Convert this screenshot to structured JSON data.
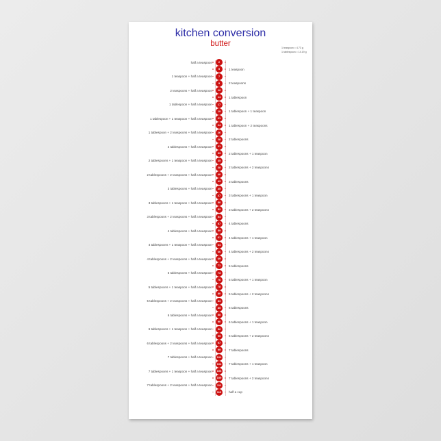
{
  "header": {
    "title": "kitchen conversion",
    "subtitle": "butter"
  },
  "notes": [
    "1 teaspoon = 4.73 g",
    "1 tablespoon = 14.19 g"
  ],
  "colors": {
    "title": "#2b2ba6",
    "subtitle": "#d01818",
    "badge": "#cc1111"
  },
  "rows": [
    {
      "grams": "2",
      "label": "half a teaspoon",
      "side": "left"
    },
    {
      "grams": "5",
      "label": "1 teaspoon",
      "side": "right"
    },
    {
      "grams": "7",
      "label": "1 teaspoon + half a teaspoon",
      "side": "left"
    },
    {
      "grams": "9",
      "label": "2 teaspoons",
      "side": "right"
    },
    {
      "grams": "12",
      "label": "2 teaspoons + half a teaspoon",
      "side": "left"
    },
    {
      "grams": "14",
      "label": "1 tablespoon",
      "side": "right"
    },
    {
      "grams": "17",
      "label": "1 tablespoon + half a teaspoon",
      "side": "left"
    },
    {
      "grams": "19",
      "label": "1 tablespoon + 1 teaspoon",
      "side": "right"
    },
    {
      "grams": "21",
      "label": "1 tablespoon + 1 teaspoon + half a teaspoon",
      "side": "left"
    },
    {
      "grams": "24",
      "label": "1 tablespoon + 2 teaspoons",
      "side": "right"
    },
    {
      "grams": "26",
      "label": "1 tablespoon + 2 teaspoons + half a teaspoon",
      "side": "left"
    },
    {
      "grams": "28",
      "label": "2 tablespoons",
      "side": "right"
    },
    {
      "grams": "31",
      "label": "2 tablespoons + half a teaspoon",
      "side": "left"
    },
    {
      "grams": "33",
      "label": "2 tablespoons + 1 teaspoon",
      "side": "right"
    },
    {
      "grams": "35",
      "label": "2 tablespoons + 1 teaspoon + half a teaspoon",
      "side": "left"
    },
    {
      "grams": "38",
      "label": "2 tablespoons + 2 teaspoons",
      "side": "right"
    },
    {
      "grams": "40",
      "label": "2 tablespoons + 2 teaspoons + half a teaspoon",
      "side": "left"
    },
    {
      "grams": "43",
      "label": "3 tablespoons",
      "side": "right"
    },
    {
      "grams": "45",
      "label": "3 tablespoons + half a teaspoon",
      "side": "left"
    },
    {
      "grams": "47",
      "label": "3 tablespoons + 1 teaspoon",
      "side": "right"
    },
    {
      "grams": "50",
      "label": "3 tablespoons + 1 teaspoon + half a teaspoon",
      "side": "left"
    },
    {
      "grams": "52",
      "label": "3 tablespoons + 2 teaspoons",
      "side": "right"
    },
    {
      "grams": "54",
      "label": "3 tablespoons + 2 teaspoons + half a teaspoon",
      "side": "left"
    },
    {
      "grams": "57",
      "label": "4 tablespoons",
      "side": "right"
    },
    {
      "grams": "59",
      "label": "4 tablespoons + half a teaspoon",
      "side": "left"
    },
    {
      "grams": "61",
      "label": "4 tablespoons + 1 teaspoon",
      "side": "right"
    },
    {
      "grams": "64",
      "label": "4 tablespoons + 1 teaspoon + half a teaspoon",
      "side": "left"
    },
    {
      "grams": "66",
      "label": "4 tablespoons + 2 teaspoons",
      "side": "right"
    },
    {
      "grams": "69",
      "label": "4 tablespoons + 2 teaspoons + half a teaspoon",
      "side": "left"
    },
    {
      "grams": "71",
      "label": "5 tablespoons",
      "side": "right"
    },
    {
      "grams": "73",
      "label": "5 tablespoons + half a teaspoon",
      "side": "left"
    },
    {
      "grams": "76",
      "label": "5 tablespoons + 1 teaspoon",
      "side": "right"
    },
    {
      "grams": "78",
      "label": "5 tablespoons + 1 teaspoon + half a teaspoon",
      "side": "left"
    },
    {
      "grams": "80",
      "label": "5 tablespoons + 2 teaspoons",
      "side": "right"
    },
    {
      "grams": "83",
      "label": "5 tablespoons + 2 teaspoons + half a teaspoon",
      "side": "left"
    },
    {
      "grams": "85",
      "label": "6 tablespoons",
      "side": "right"
    },
    {
      "grams": "88",
      "label": "6 tablespoons + half a teaspoon",
      "side": "left"
    },
    {
      "grams": "90",
      "label": "6 tablespoons + 1 teaspoon",
      "side": "right"
    },
    {
      "grams": "92",
      "label": "6 tablespoons + 1 teaspoon + half a teaspoon",
      "side": "left"
    },
    {
      "grams": "95",
      "label": "6 tablespoons + 2 teaspoons",
      "side": "right"
    },
    {
      "grams": "97",
      "label": "6 tablespoons + 2 teaspoons + half a teaspoon",
      "side": "left"
    },
    {
      "grams": "99",
      "label": "7 tablespoons",
      "side": "right"
    },
    {
      "grams": "102",
      "label": "7 tablespoons + half a teaspoon",
      "side": "left"
    },
    {
      "grams": "104",
      "label": "7 tablespoons + 1 teaspoon",
      "side": "right"
    },
    {
      "grams": "106",
      "label": "7 tablespoons + 1 teaspoon + half a teaspoon",
      "side": "left"
    },
    {
      "grams": "109",
      "label": "7 tablespoons + 2 teaspoons",
      "side": "right"
    },
    {
      "grams": "111",
      "label": "7 tablespoons + 2 teaspoons + half a teaspoon",
      "side": "left"
    },
    {
      "grams": "113",
      "label": "half a cup",
      "side": "right"
    }
  ]
}
